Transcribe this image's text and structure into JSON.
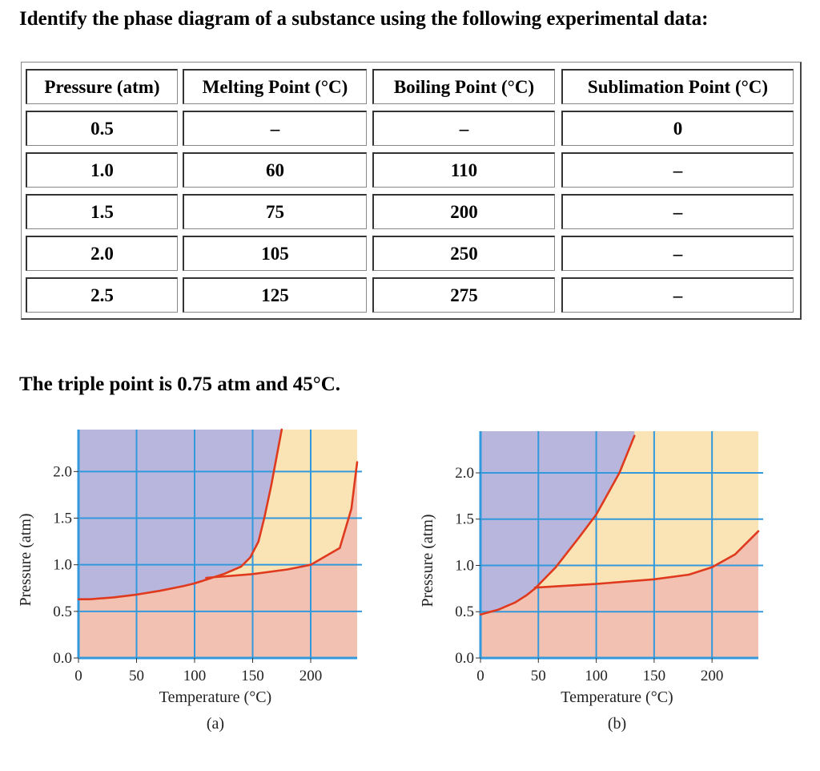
{
  "question": "Identify the phase diagram of a substance using the following experimental data:",
  "table": {
    "headers": [
      "Pressure (atm)",
      "Melting Point (°C)",
      "Boiling Point (°C)",
      "Sublimation Point (°C)"
    ],
    "rows": [
      [
        "0.5",
        "–",
        "–",
        "0"
      ],
      [
        "1.0",
        "60",
        "110",
        "–"
      ],
      [
        "1.5",
        "75",
        "200",
        "–"
      ],
      [
        "2.0",
        "105",
        "250",
        "–"
      ],
      [
        "2.5",
        "125",
        "275",
        "–"
      ]
    ]
  },
  "triple_point_text": "The triple point is 0.75 atm and 45°C.",
  "colors": {
    "solid": "#b8b6dc",
    "liquid": "#fae4b6",
    "gas": "#f2c1b2",
    "curve": "#e03a1e",
    "grid": "#3399dd"
  },
  "chart_data": [
    {
      "type": "area",
      "caption": "(a)",
      "xlabel": "Temperature (°C)",
      "ylabel": "Pressure (atm)",
      "xlim": [
        0,
        240
      ],
      "ylim": [
        0,
        2.45
      ],
      "x_ticks": [
        0,
        50,
        100,
        150,
        200
      ],
      "y_ticks": [
        "0.0",
        "0.5",
        "1.0",
        "1.5",
        "2.0"
      ],
      "grid": true,
      "regions": [
        "solid (upper left)",
        "liquid (upper right)",
        "gas (bottom)"
      ],
      "curves": [
        {
          "x": [
            0,
            10,
            30,
            50,
            70,
            90,
            100,
            110
          ],
          "y": [
            0.63,
            0.63,
            0.65,
            0.68,
            0.72,
            0.77,
            0.8,
            0.84
          ]
        },
        {
          "x": [
            110,
            125,
            140,
            148,
            155,
            160,
            166,
            175
          ],
          "y": [
            0.84,
            0.9,
            0.98,
            1.08,
            1.25,
            1.5,
            1.85,
            2.45
          ]
        },
        {
          "x": [
            110,
            150,
            180,
            200,
            225,
            235,
            240
          ],
          "y": [
            0.86,
            0.9,
            0.95,
            1.0,
            1.18,
            1.6,
            2.1
          ]
        }
      ]
    },
    {
      "type": "area",
      "caption": "(b)",
      "xlabel": "Temperature (°C)",
      "ylabel": "Pressure (atm)",
      "xlim": [
        0,
        240
      ],
      "ylim": [
        0,
        2.45
      ],
      "x_ticks": [
        0,
        50,
        100,
        150,
        200
      ],
      "y_ticks": [
        "0.0",
        "0.5",
        "1.0",
        "1.5",
        "2.0"
      ],
      "grid": true,
      "regions": [
        "solid (upper left)",
        "liquid (upper right)",
        "gas (bottom)"
      ],
      "curves": [
        {
          "x": [
            0,
            15,
            30,
            40,
            47
          ],
          "y": [
            0.47,
            0.52,
            0.6,
            0.68,
            0.75
          ]
        },
        {
          "x": [
            47,
            65,
            85,
            100,
            120,
            133
          ],
          "y": [
            0.75,
            0.98,
            1.3,
            1.55,
            2.0,
            2.4
          ]
        },
        {
          "x": [
            47,
            100,
            150,
            180,
            200,
            220,
            240
          ],
          "y": [
            0.76,
            0.8,
            0.85,
            0.9,
            0.98,
            1.12,
            1.37
          ]
        }
      ]
    }
  ]
}
